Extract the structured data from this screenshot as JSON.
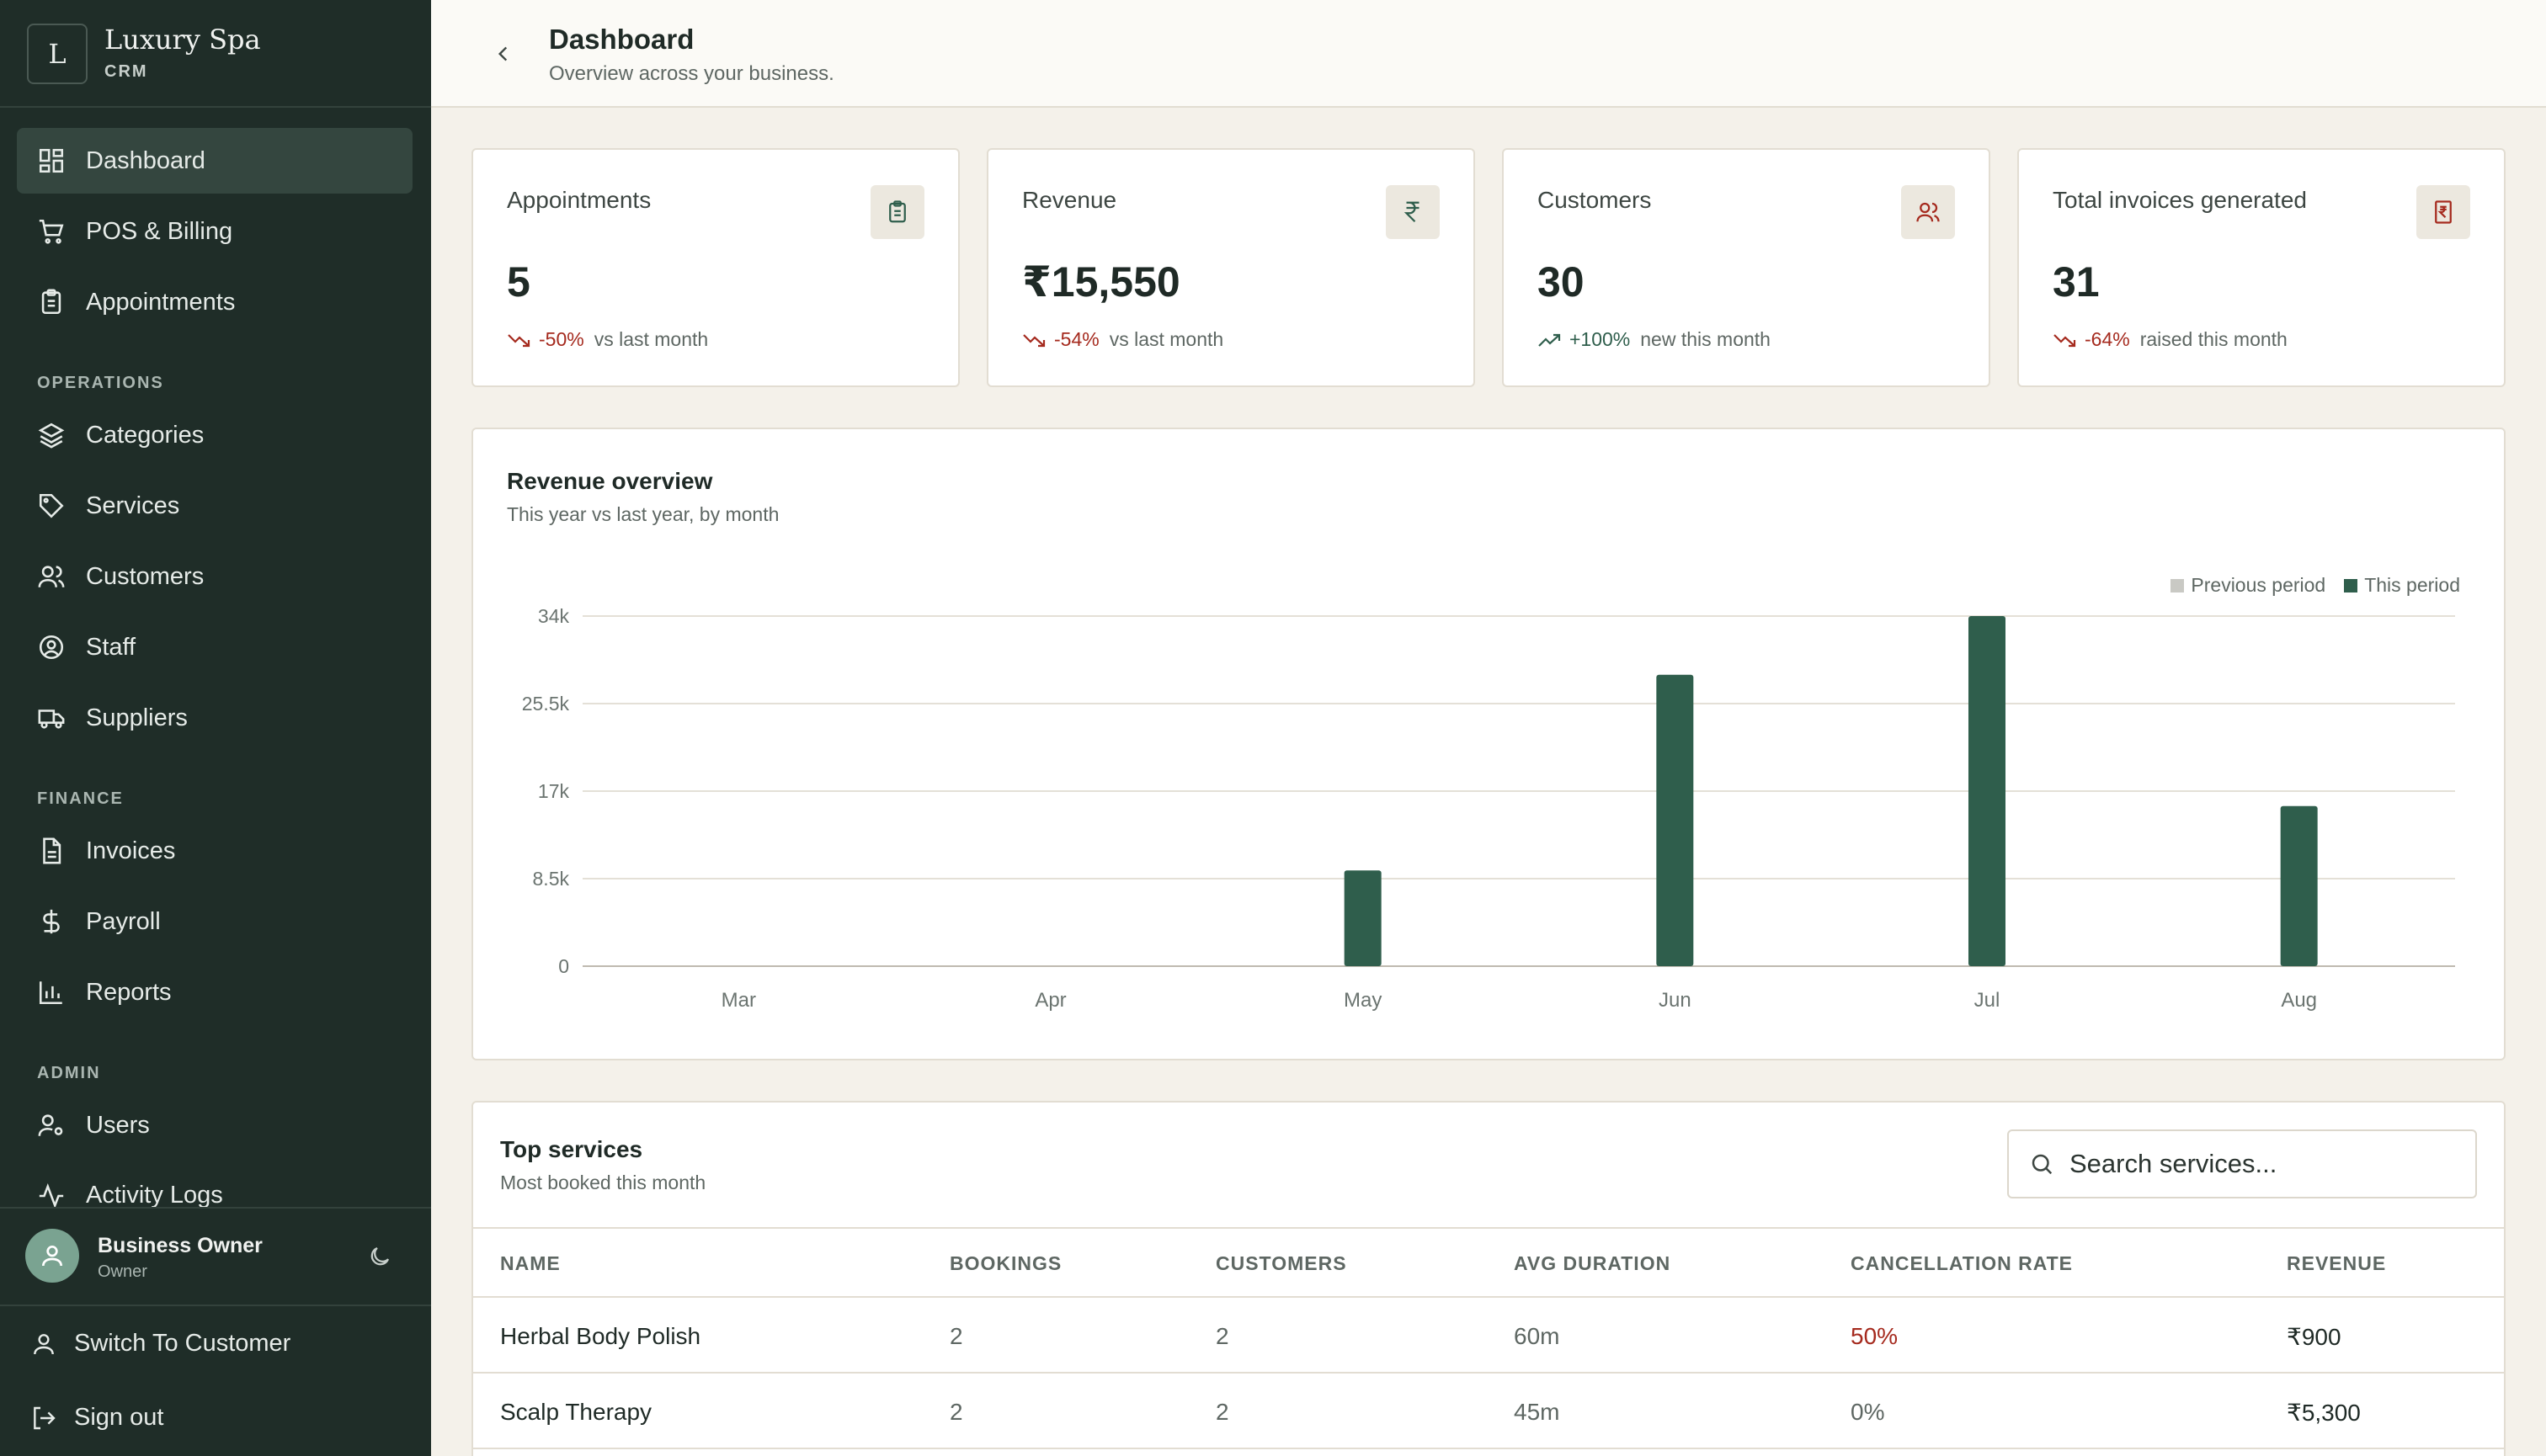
{
  "brand": {
    "logo_letter": "L",
    "name": "Luxury Spa",
    "sub": "CRM"
  },
  "nav": {
    "dashboard": "Dashboard",
    "pos": "POS & Billing",
    "appointments": "Appointments",
    "section_operations": "OPERATIONS",
    "categories": "Categories",
    "services": "Services",
    "customers": "Customers",
    "staff": "Staff",
    "suppliers": "Suppliers",
    "section_finance": "FINANCE",
    "invoices": "Invoices",
    "payroll": "Payroll",
    "reports": "Reports",
    "section_admin": "ADMIN",
    "users": "Users",
    "activity_logs": "Activity Logs"
  },
  "user": {
    "name": "Business Owner",
    "role": "Owner"
  },
  "bottom_links": {
    "switch": "Switch To Customer",
    "signout": "Sign out"
  },
  "header": {
    "title": "Dashboard",
    "subtitle": "Overview across your business."
  },
  "stats": [
    {
      "label": "Appointments",
      "value": "5",
      "delta": "-50%",
      "note": "vs last month",
      "trend": "down",
      "icon": "clipboard-icon"
    },
    {
      "label": "Revenue",
      "value": "₹15,550",
      "delta": "-54%",
      "note": "vs last month",
      "trend": "down",
      "icon": "rupee-icon"
    },
    {
      "label": "Customers",
      "value": "30",
      "delta": "+100%",
      "note": "new this month",
      "trend": "up",
      "icon": "users-icon"
    },
    {
      "label": "Total invoices generated",
      "value": "31",
      "delta": "-64%",
      "note": "raised this month",
      "trend": "down",
      "icon": "invoice-icon"
    }
  ],
  "revenue_overview": {
    "title": "Revenue overview",
    "subtitle": "This year vs last year, by month",
    "legend_previous": "Previous period",
    "legend_this": "This period"
  },
  "chart_data": {
    "type": "bar",
    "categories": [
      "Mar",
      "Apr",
      "May",
      "Jun",
      "Jul",
      "Aug"
    ],
    "series": [
      {
        "name": "Previous period",
        "values": [
          0,
          0,
          0,
          0,
          0,
          0
        ],
        "color": "#c9c9c4"
      },
      {
        "name": "This period",
        "values": [
          0,
          0,
          9300,
          28300,
          34000,
          15550
        ],
        "color": "#2f5e4c"
      }
    ],
    "yticks": [
      0,
      8500,
      17000,
      25500,
      34000
    ],
    "ytick_labels": [
      "0",
      "8.5k",
      "17k",
      "25.5k",
      "34k"
    ],
    "ylim": [
      0,
      34000
    ],
    "grid": true,
    "legend_position": "top-right"
  },
  "top_services": {
    "title": "Top services",
    "subtitle": "Most booked this month",
    "search_placeholder": "Search services...",
    "columns": [
      "NAME",
      "BOOKINGS",
      "CUSTOMERS",
      "AVG DURATION",
      "CANCELLATION RATE",
      "REVENUE"
    ],
    "rows": [
      {
        "name": "Herbal Body Polish",
        "bookings": "2",
        "customers": "2",
        "duration": "60m",
        "cancel": "50%",
        "revenue": "₹900"
      },
      {
        "name": "Scalp Therapy",
        "bookings": "2",
        "customers": "2",
        "duration": "45m",
        "cancel": "0%",
        "revenue": "₹5,300"
      }
    ]
  },
  "colors": {
    "sidebar_bg": "#1f2d28",
    "accent_green": "#2f5e4c",
    "negative_red": "#a52a1e",
    "page_bg": "#f4f1ea"
  }
}
